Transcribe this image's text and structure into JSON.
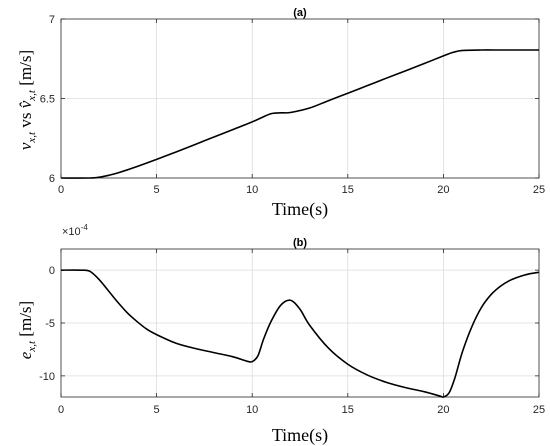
{
  "chart_data": [
    {
      "type": "line",
      "title": "(a)",
      "xlabel": "Time(s)",
      "ylabel": {
        "main": "v",
        "sub": "x,t",
        "mid": " vs ",
        "hat": "v̂",
        "hat_sub": "x,t",
        "unit": " [m/s]"
      },
      "xlim": [
        0,
        25
      ],
      "ylim": [
        6,
        7
      ],
      "xticks": [
        0,
        5,
        10,
        15,
        20,
        25
      ],
      "xtick_labels": [
        "0",
        "5",
        "10",
        "15",
        "20",
        "25"
      ],
      "yticks": [
        6,
        6.5,
        7
      ],
      "ytick_labels": [
        "6",
        "6.5",
        "7"
      ],
      "grid": true,
      "series": [
        {
          "x": [
            0,
            1.5,
            2,
            2.5,
            3,
            4,
            5,
            6,
            7,
            8,
            9,
            10,
            10.5,
            11,
            11.5,
            12,
            13,
            14,
            15,
            16,
            17,
            18,
            19,
            20,
            20.5,
            21,
            22,
            23,
            24,
            25
          ],
          "y": [
            6.0,
            6.0,
            6.005,
            6.017,
            6.033,
            6.073,
            6.117,
            6.163,
            6.21,
            6.258,
            6.305,
            6.353,
            6.38,
            6.405,
            6.41,
            6.412,
            6.44,
            6.487,
            6.533,
            6.58,
            6.627,
            6.673,
            6.72,
            6.768,
            6.79,
            6.802,
            6.805,
            6.805,
            6.805,
            6.805
          ]
        }
      ]
    },
    {
      "type": "line",
      "title": "(b)",
      "xlabel": "Time(s)",
      "ylabel": {
        "main": "e",
        "sub": "x,t",
        "unit": " [m/s]"
      },
      "y_multiplier": "×10",
      "y_exponent": "-4",
      "xlim": [
        0,
        25
      ],
      "ylim": [
        -12,
        2
      ],
      "xticks": [
        0,
        5,
        10,
        15,
        20,
        25
      ],
      "xtick_labels": [
        "0",
        "5",
        "10",
        "15",
        "20",
        "25"
      ],
      "yticks": [
        0,
        -5,
        -10
      ],
      "ytick_labels": [
        "0",
        "-5",
        "-10"
      ],
      "grid": true,
      "series": [
        {
          "x": [
            0,
            1.0,
            1.5,
            2,
            2.5,
            3,
            3.5,
            4,
            4.5,
            5,
            6,
            7,
            8,
            9,
            9.7,
            10,
            10.3,
            10.6,
            11,
            11.5,
            12,
            12.5,
            13,
            14,
            15,
            16,
            17,
            18,
            19,
            19.8,
            20,
            20.3,
            20.6,
            21,
            21.5,
            22,
            22.5,
            23,
            23.5,
            24,
            24.5,
            25
          ],
          "y": [
            0,
            0,
            -0.1,
            -0.9,
            -2.0,
            -3.1,
            -4.1,
            -4.9,
            -5.6,
            -6.1,
            -6.9,
            -7.4,
            -7.8,
            -8.2,
            -8.6,
            -8.65,
            -8.1,
            -6.5,
            -4.8,
            -3.3,
            -2.85,
            -3.7,
            -5.2,
            -7.4,
            -8.9,
            -9.9,
            -10.6,
            -11.1,
            -11.5,
            -11.9,
            -12.0,
            -11.6,
            -10.2,
            -7.7,
            -5.3,
            -3.5,
            -2.3,
            -1.5,
            -0.95,
            -0.6,
            -0.35,
            -0.2
          ]
        }
      ]
    }
  ]
}
